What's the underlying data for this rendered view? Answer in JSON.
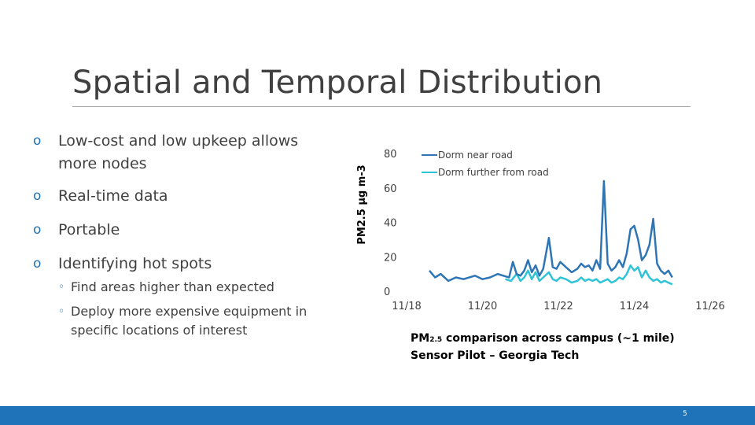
{
  "slide": {
    "title": "Spatial and Temporal Distribution",
    "page_number": "5"
  },
  "bullets": {
    "marker": "o",
    "sub_marker": "◦",
    "b1_line1": "Low-cost and low upkeep allows",
    "b1_line2": "more nodes",
    "b2": "Real-time data",
    "b3": "Portable",
    "b4": "Identifying hot spots",
    "b4_sub1": "Find areas higher than expected",
    "b4_sub2_line1": "Deploy more expensive equipment in",
    "b4_sub2_line2": "specific locations of interest"
  },
  "caption": {
    "line1_prefix": "PM",
    "line1_sub": "2.5",
    "line1_rest": " comparison across campus (~1 mile)",
    "line2": "Sensor Pilot – Georgia Tech"
  },
  "chart_data": {
    "type": "line",
    "ylabel": "PM2.5 µg m-3",
    "ylim": [
      0,
      80
    ],
    "yticks": [
      "0",
      "20",
      "40",
      "60",
      "80"
    ],
    "xlim": [
      18,
      26
    ],
    "xticks": [
      "11/18",
      "11/20",
      "11/22",
      "11/24",
      "11/26"
    ],
    "legend_position": "top",
    "colors": {
      "near": "#2e75b6",
      "far": "#2ec4d6"
    },
    "series": [
      {
        "name": "Dorm near road",
        "color": "#2e75b6",
        "x": [
          18.6,
          18.75,
          18.9,
          19.1,
          19.3,
          19.5,
          19.8,
          20.0,
          20.2,
          20.4,
          20.55,
          20.7,
          20.8,
          20.9,
          21.0,
          21.1,
          21.2,
          21.3,
          21.4,
          21.5,
          21.6,
          21.75,
          21.85,
          21.95,
          22.05,
          22.2,
          22.35,
          22.5,
          22.6,
          22.7,
          22.8,
          22.9,
          23.0,
          23.1,
          23.2,
          23.3,
          23.4,
          23.5,
          23.6,
          23.7,
          23.8,
          23.9,
          24.0,
          24.1,
          24.2,
          24.3,
          24.4,
          24.5,
          24.6,
          24.7,
          24.8,
          24.9,
          25.0
        ],
        "y": [
          12,
          8,
          10,
          6,
          8,
          7,
          9,
          7,
          8,
          10,
          9,
          8,
          17,
          10,
          9,
          12,
          18,
          11,
          15,
          9,
          13,
          31,
          14,
          13,
          17,
          14,
          11,
          13,
          16,
          14,
          15,
          12,
          18,
          13,
          64,
          16,
          12,
          14,
          18,
          14,
          22,
          36,
          38,
          30,
          18,
          21,
          27,
          42,
          16,
          12,
          10,
          12,
          8
        ]
      },
      {
        "name": "Dorm further from road",
        "color": "#2ec4d6",
        "x": [
          20.6,
          20.75,
          20.9,
          21.0,
          21.1,
          21.2,
          21.3,
          21.4,
          21.5,
          21.6,
          21.75,
          21.85,
          21.95,
          22.05,
          22.2,
          22.35,
          22.5,
          22.6,
          22.7,
          22.8,
          22.9,
          23.0,
          23.1,
          23.2,
          23.3,
          23.4,
          23.5,
          23.6,
          23.7,
          23.8,
          23.9,
          24.0,
          24.1,
          24.2,
          24.3,
          24.4,
          24.5,
          24.6,
          24.7,
          24.8,
          24.9,
          25.0
        ],
        "y": [
          7,
          6,
          10,
          6,
          8,
          12,
          7,
          11,
          6,
          8,
          11,
          7,
          6,
          8,
          7,
          5,
          6,
          8,
          6,
          7,
          6,
          7,
          5,
          6,
          7,
          5,
          6,
          8,
          7,
          10,
          15,
          12,
          14,
          8,
          12,
          8,
          6,
          7,
          5,
          6,
          5,
          4
        ]
      }
    ]
  }
}
